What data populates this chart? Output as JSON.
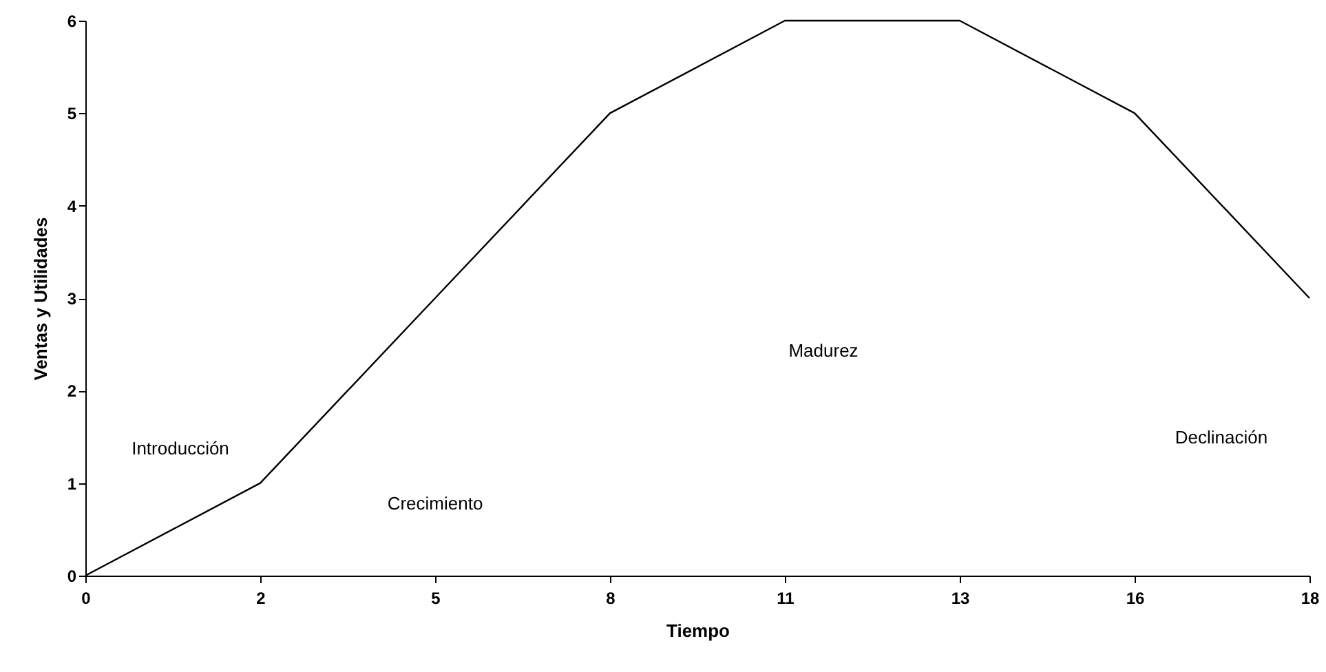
{
  "chart_data": {
    "type": "line",
    "xlabel": "Tiempo",
    "ylabel": "Ventas y Utilidades",
    "categories": [
      "0",
      "2",
      "5",
      "8",
      "11",
      "13",
      "16",
      "18"
    ],
    "series": [
      {
        "color": "#000000",
        "values": [
          0,
          1,
          3,
          5,
          6,
          6,
          5,
          3
        ]
      }
    ],
    "ylim": [
      0,
      6
    ],
    "yticks": [
      0,
      1,
      2,
      3,
      4,
      5,
      6
    ],
    "grid": false,
    "marker": "none",
    "line_style": "solid",
    "annotations": [
      "Introducción",
      "Crecimiento",
      "Madurez",
      "Declinación"
    ]
  }
}
